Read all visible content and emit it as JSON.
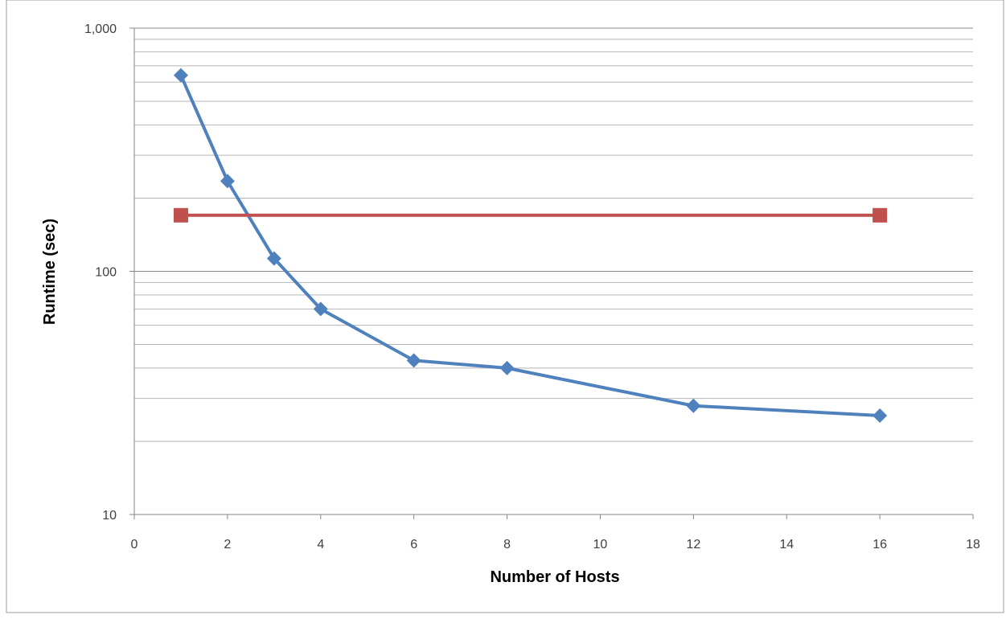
{
  "chart_data": {
    "type": "line",
    "xlabel": "Number of Hosts",
    "ylabel": "Runtime (sec)",
    "xlim": [
      0,
      18
    ],
    "x_ticks": [
      0,
      2,
      4,
      6,
      8,
      10,
      12,
      14,
      16,
      18
    ],
    "x_tick_labels": [
      "0",
      "2",
      "4",
      "6",
      "8",
      "10",
      "12",
      "14",
      "16",
      "18"
    ],
    "y_scale": "log",
    "ylim": [
      10,
      1000
    ],
    "y_ticks": [
      10,
      100,
      1000
    ],
    "y_tick_labels": [
      "10",
      "100",
      "1,000"
    ],
    "grid": {
      "major": true,
      "minor": true
    },
    "legend": "none",
    "series": [
      {
        "color": "#4f81bd",
        "marker": "diamond",
        "x": [
          1,
          2,
          3,
          4,
          6,
          8,
          12,
          16
        ],
        "y": [
          640,
          235,
          113,
          70,
          43,
          40,
          28,
          25.5
        ]
      },
      {
        "color": "#c0504d",
        "marker": "square",
        "x": [
          1,
          16
        ],
        "y": [
          170,
          170
        ]
      }
    ]
  }
}
